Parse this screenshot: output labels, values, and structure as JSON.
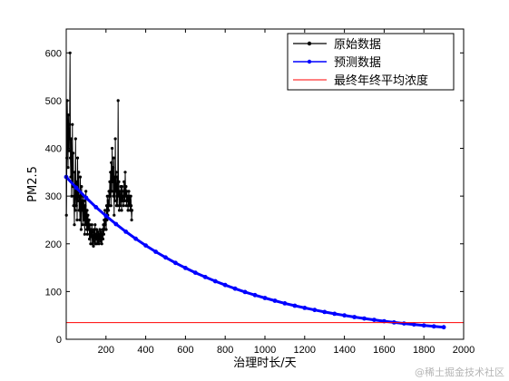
{
  "chart_data": {
    "type": "line",
    "title": "",
    "xlabel": "治理时长/天",
    "ylabel": "PM2.5",
    "xlim": [
      0,
      2000
    ],
    "ylim": [
      0,
      650
    ],
    "xticks": [
      200,
      400,
      600,
      800,
      1000,
      1200,
      1400,
      1600,
      1800,
      2000
    ],
    "yticks": [
      0,
      100,
      200,
      300,
      400,
      500,
      600
    ],
    "grid": false,
    "legend_position": "top-right",
    "series": [
      {
        "name": "原始数据",
        "color": "#000000",
        "marker": "dot",
        "x": [
          1,
          3,
          5,
          7,
          9,
          11,
          13,
          15,
          17,
          19,
          21,
          23,
          25,
          27,
          29,
          31,
          33,
          35,
          37,
          39,
          41,
          43,
          45,
          47,
          49,
          51,
          53,
          55,
          57,
          59,
          61,
          63,
          65,
          67,
          69,
          71,
          73,
          75,
          77,
          79,
          81,
          83,
          85,
          87,
          89,
          91,
          93,
          95,
          97,
          99,
          101,
          103,
          105,
          107,
          109,
          111,
          113,
          115,
          117,
          119,
          121,
          123,
          125,
          127,
          129,
          131,
          133,
          135,
          137,
          139,
          141,
          143,
          145,
          147,
          149,
          151,
          153,
          155,
          157,
          159,
          161,
          163,
          165,
          167,
          169,
          171,
          173,
          175,
          177,
          179,
          181,
          183,
          185,
          187,
          189,
          191,
          193,
          195,
          197,
          199,
          201,
          203,
          205,
          207,
          209,
          211,
          213,
          215,
          217,
          219,
          221,
          223,
          225,
          227,
          229,
          231,
          233,
          235,
          237,
          239,
          241,
          243,
          245,
          247,
          249,
          251,
          253,
          255,
          257,
          259,
          261,
          263,
          265,
          267,
          269,
          271,
          273,
          275,
          277,
          279,
          281,
          283,
          285,
          287,
          289,
          291,
          293,
          295,
          297,
          299,
          301,
          303,
          305,
          307,
          309,
          311,
          313,
          315,
          317,
          319,
          321,
          323,
          325,
          327,
          329,
          331
        ],
        "y": [
          260,
          380,
          500,
          440,
          360,
          470,
          420,
          395,
          450,
          600,
          380,
          340,
          420,
          300,
          360,
          450,
          320,
          390,
          280,
          300,
          240,
          350,
          270,
          420,
          310,
          280,
          330,
          250,
          380,
          290,
          310,
          350,
          270,
          300,
          250,
          340,
          280,
          230,
          320,
          270,
          290,
          240,
          300,
          250,
          260,
          290,
          220,
          280,
          240,
          310,
          250,
          230,
          270,
          220,
          260,
          240,
          230,
          250,
          210,
          240,
          220,
          200,
          230,
          215,
          240,
          200,
          225,
          210,
          195,
          230,
          205,
          215,
          240,
          200,
          220,
          210,
          230,
          200,
          215,
          225,
          205,
          220,
          200,
          215,
          230,
          210,
          225,
          205,
          220,
          200,
          215,
          230,
          210,
          240,
          220,
          250,
          230,
          270,
          240,
          260,
          230,
          280,
          250,
          300,
          260,
          290,
          270,
          310,
          280,
          330,
          300,
          350,
          280,
          370,
          310,
          400,
          330,
          360,
          300,
          380,
          260,
          340,
          290,
          420,
          310,
          350,
          280,
          300,
          340,
          280,
          500,
          300,
          330,
          270,
          310,
          280,
          290,
          320,
          300,
          270,
          320,
          310,
          290,
          300,
          280,
          330,
          310,
          290,
          350,
          300,
          320,
          280,
          310,
          290,
          300,
          270,
          290,
          310,
          280,
          300,
          290,
          270,
          300,
          280,
          250,
          270
        ]
      },
      {
        "name": "预测数据",
        "color": "#0000ff",
        "marker": "dot",
        "x": [
          0,
          50,
          100,
          150,
          200,
          250,
          300,
          350,
          400,
          450,
          500,
          550,
          600,
          650,
          700,
          750,
          800,
          850,
          900,
          950,
          1000,
          1050,
          1100,
          1150,
          1200,
          1250,
          1300,
          1350,
          1400,
          1450,
          1500,
          1550,
          1600,
          1650,
          1700,
          1750,
          1800,
          1850,
          1900
        ],
        "y": [
          340,
          317.5,
          296.4,
          276.8,
          258.5,
          241.4,
          225.4,
          210.5,
          196.5,
          183.5,
          171.4,
          160,
          149.4,
          139.5,
          130.3,
          121.7,
          113.6,
          106.1,
          99.1,
          92.5,
          86.4,
          80.7,
          75.3,
          70.3,
          65.7,
          61.3,
          57.3,
          53.5,
          49.9,
          46.6,
          43.5,
          40.6,
          37.9,
          35.4,
          33.1,
          30.9,
          28.9,
          27,
          25.2
        ]
      },
      {
        "name": "最终年终平均浓度",
        "color": "#ff0000",
        "marker": "none",
        "x": [
          0,
          2000
        ],
        "y": [
          35,
          35
        ]
      }
    ]
  },
  "watermark": "@稀土掘金技术社区"
}
